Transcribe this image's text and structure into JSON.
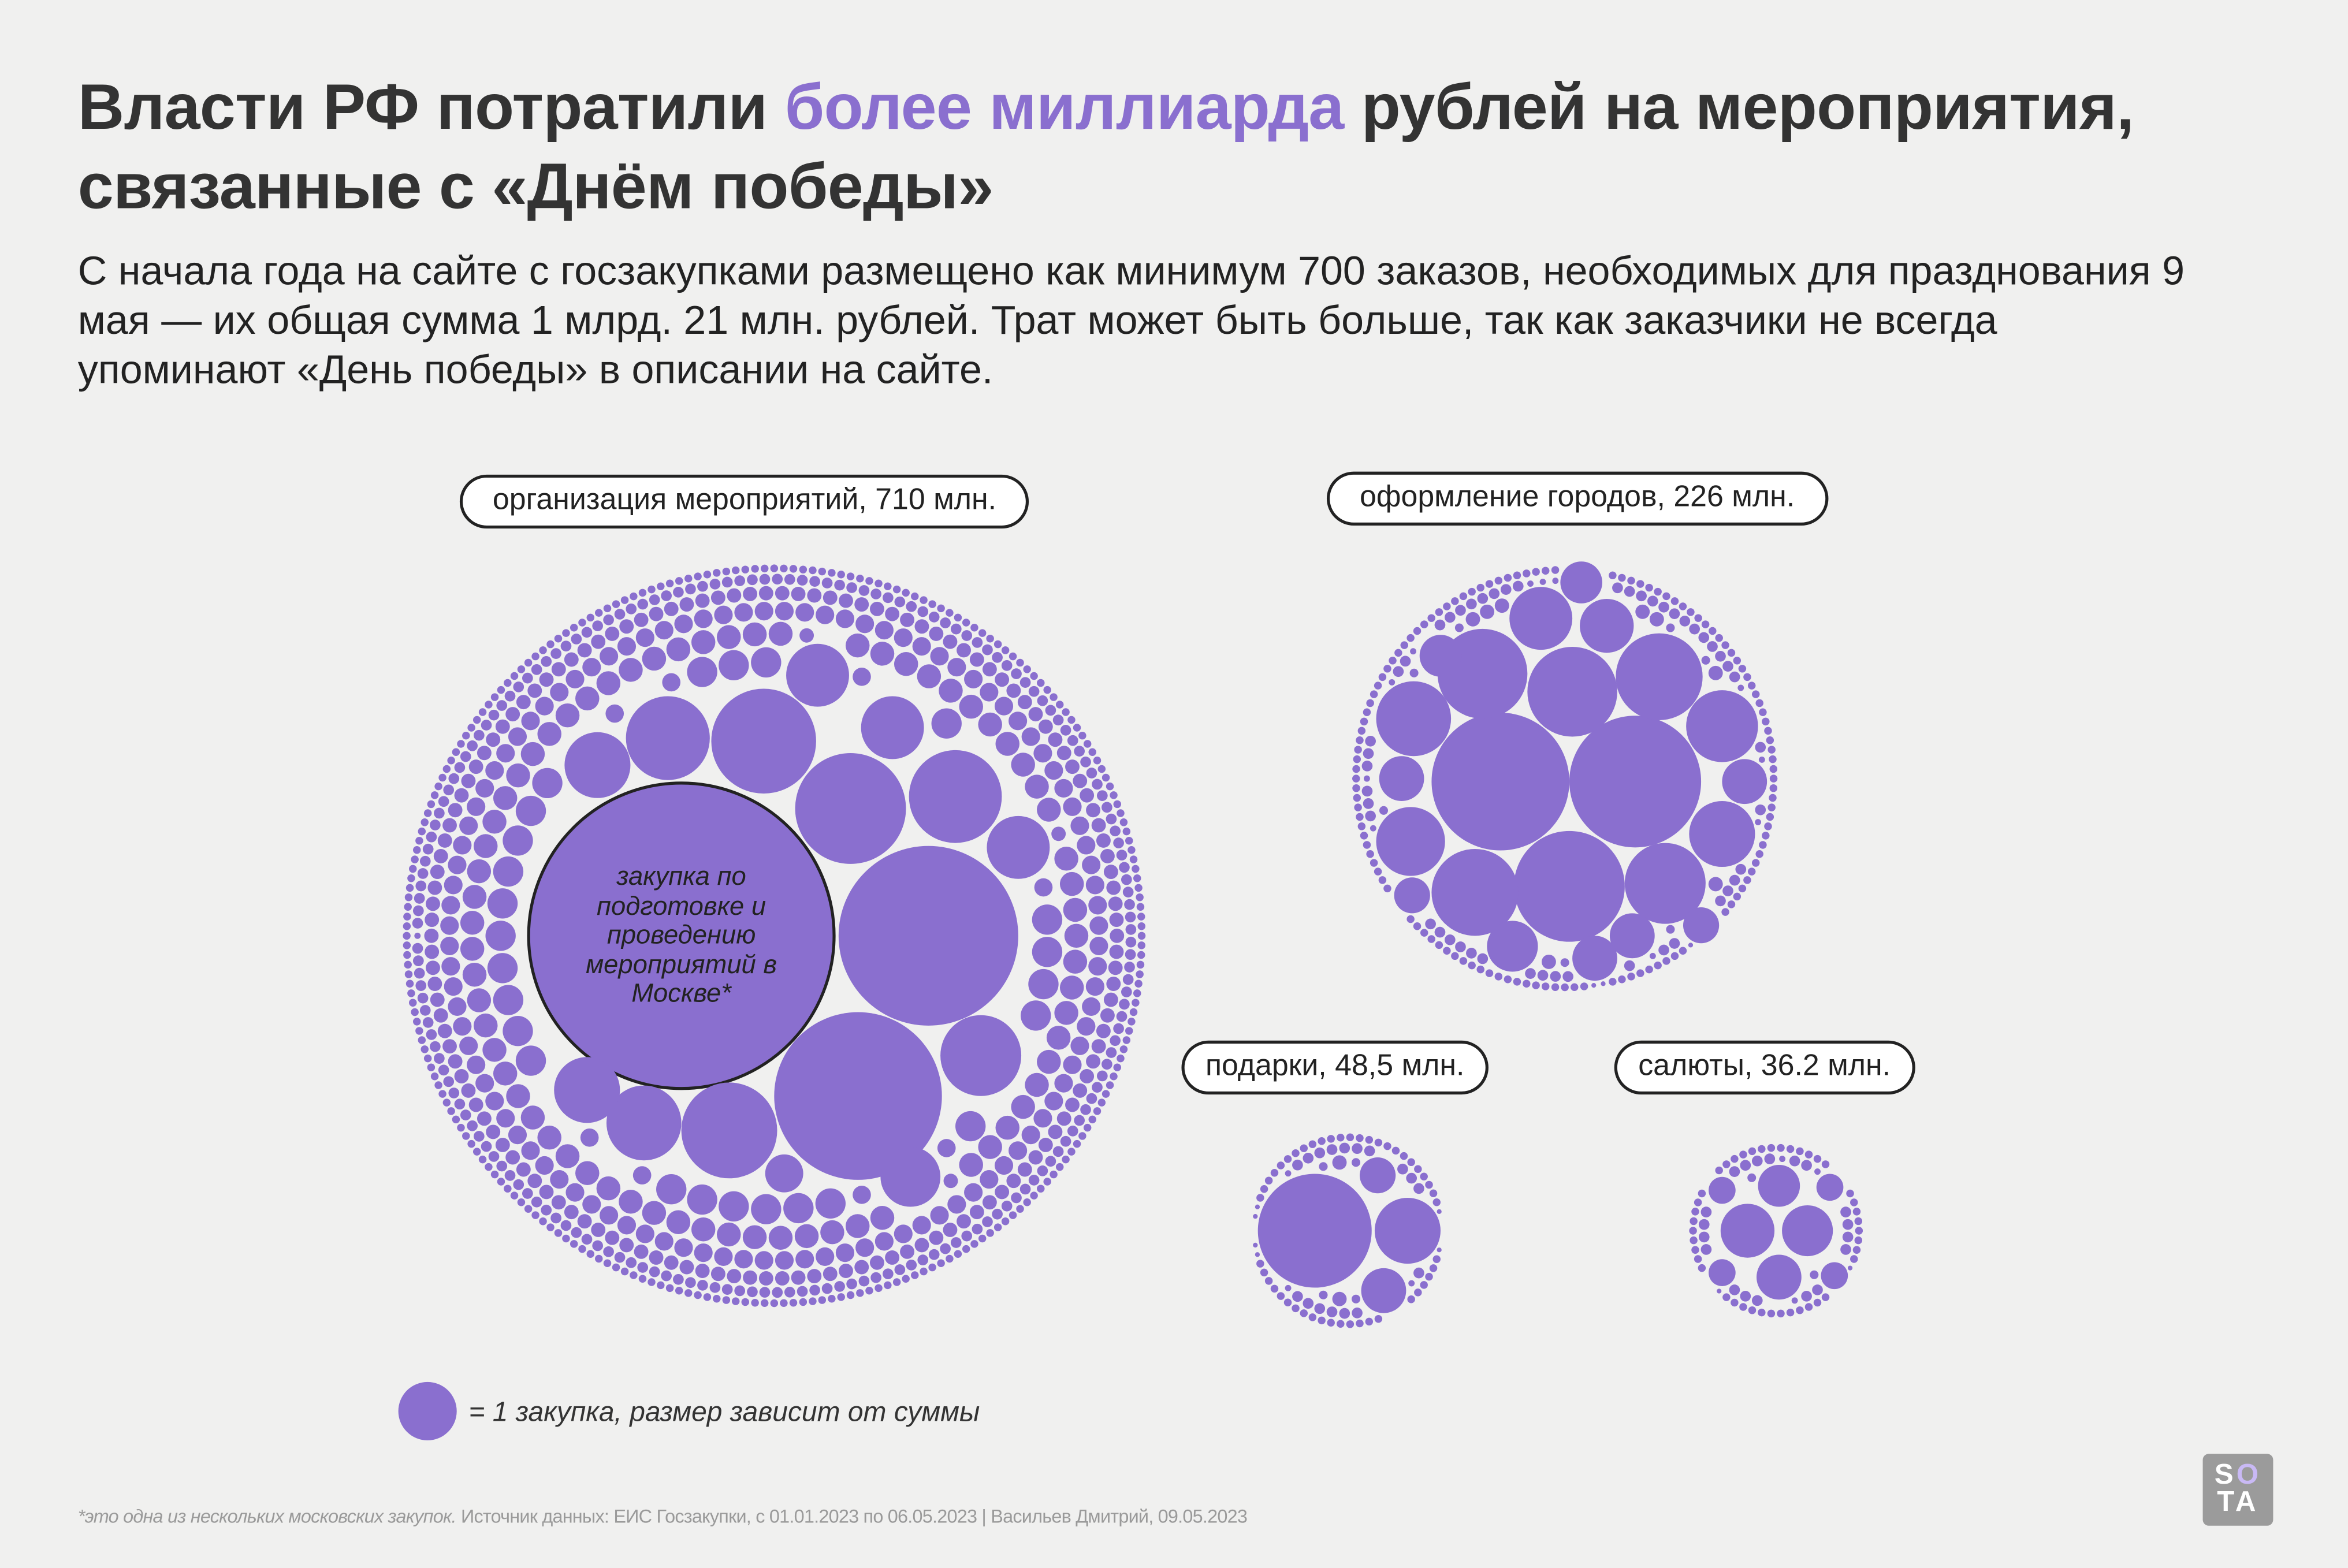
{
  "title": {
    "part1": "Власти РФ потратили ",
    "highlight": "более миллиарда",
    "part2": " рублей на мероприятия, связанные с «Днём победы»"
  },
  "subtitle": "С начала года на сайте с госзакупками размещено как минимум 700 заказов, необходимых для празднования 9 мая — их общая сумма 1 млрд. 21 млн. рублей. Трат может быть больше, так как заказчики не всегда упоминают «День победы» в описании на сайте.",
  "colors": {
    "accent": "#8a6fcf",
    "text": "#333333",
    "background": "#f0f0ef"
  },
  "chart_data": {
    "type": "packed-bubble",
    "groups": [
      {
        "label": "организация мероприятий, 710 млн.",
        "value": 710
      },
      {
        "label": "оформление городов, 226 млн.",
        "value": 226
      },
      {
        "label": "подарки, 48,5 млн.",
        "value": 48.5
      },
      {
        "label": "салюты, 36.2 млн.",
        "value": 36.2
      }
    ],
    "highlight_label": "закупка по подготовке и проведению мероприятий в Москве*",
    "legend": "= 1 закупка, размер зависит от суммы"
  },
  "footnote": {
    "note": "*это одна из нескольких московских закупок.",
    "source": " Источник данных: ЕИС Госзакупки, с 01.01.2023 по 06.05.2023 | Васильев Дмитрий, 09.05.2023"
  },
  "logo": {
    "top": "SO",
    "bottom": "TA"
  }
}
